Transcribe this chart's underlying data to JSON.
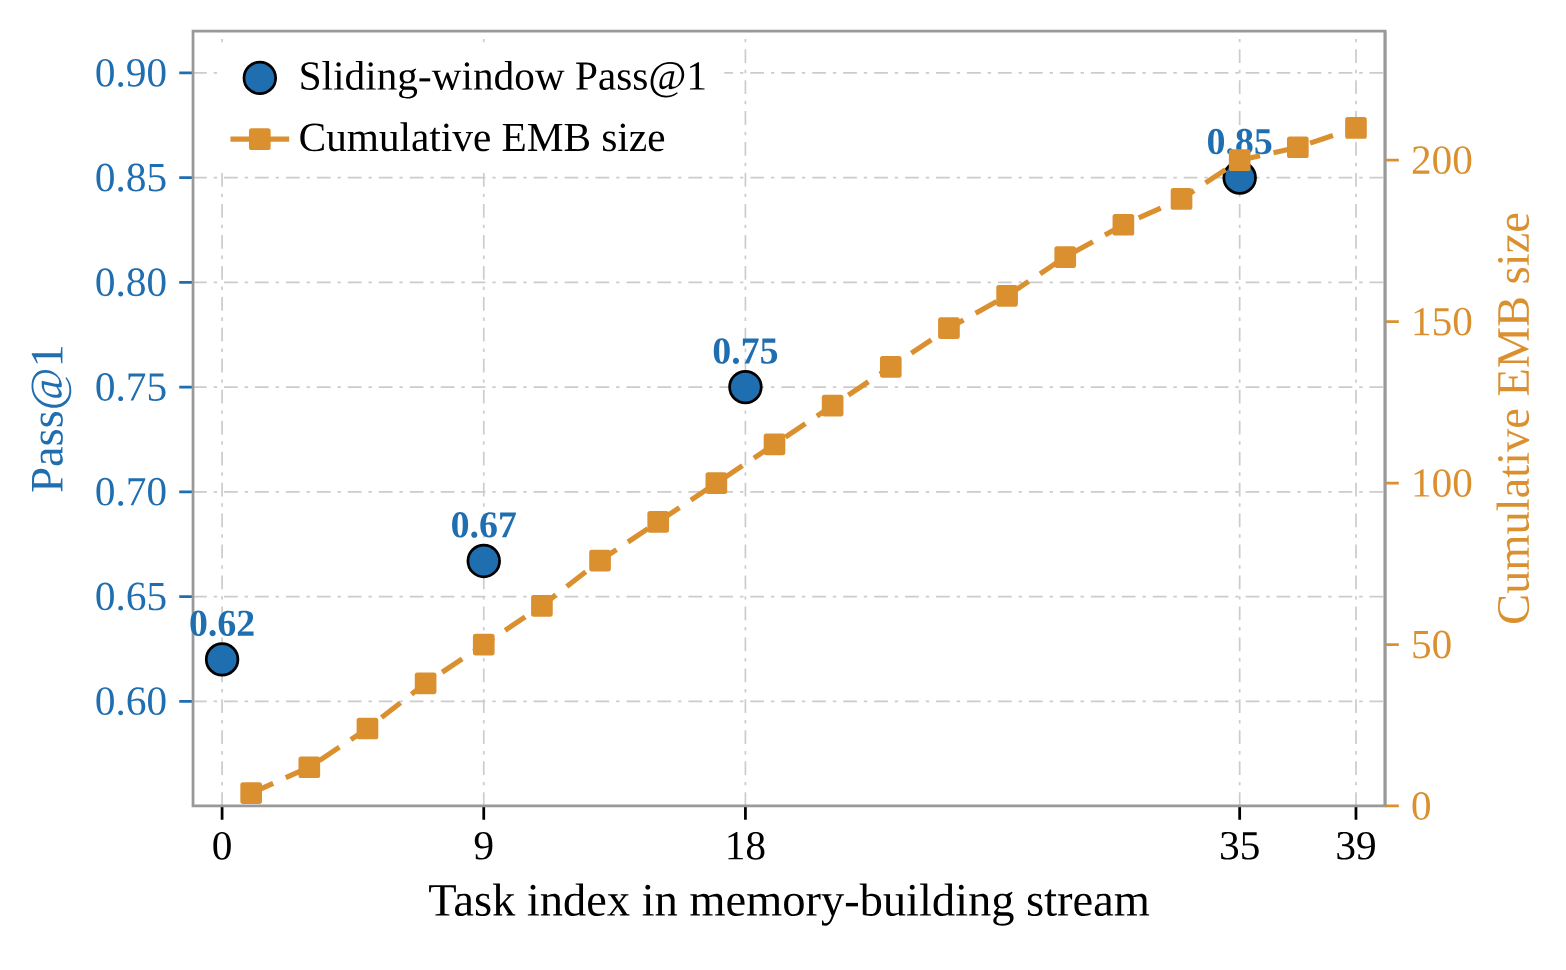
{
  "chart_data": {
    "type": "scatter",
    "xlabel": "Task index in memory-building stream",
    "ylabel": "Pass@1",
    "y2label": "Cumulative EMB size",
    "xlim": [
      -1,
      40
    ],
    "xticks": [
      0,
      9,
      18,
      35,
      39
    ],
    "ylim": [
      0.55,
      0.92
    ],
    "yticks": [
      {
        "value": 0.6,
        "label": "0.60"
      },
      0.65,
      {
        "value": 0.7,
        "label": "0.70"
      },
      0.75,
      {
        "value": 0.8,
        "label": "0.80"
      },
      0.85,
      {
        "value": 0.9,
        "label": "0.90"
      }
    ],
    "y2lim": [
      0,
      240
    ],
    "y2ticks": [
      0,
      50,
      100,
      150,
      200
    ],
    "grid": true,
    "legend": "top left",
    "series": [
      {
        "name": "Sliding-window Pass@1",
        "marker": "circle",
        "color": "#1f6eb0",
        "x": [
          0,
          9,
          18,
          35
        ],
        "values": [
          0.62,
          0.667,
          0.75,
          0.85
        ],
        "value_labels": [
          "0.62",
          "0.67",
          "0.75",
          "0.85"
        ]
      },
      {
        "name": "Cumulative EMB size",
        "type": "line",
        "axis": "y2",
        "marker": "square",
        "line_style": "dashed",
        "color": "#db9030",
        "x": [
          1,
          3,
          5,
          7,
          9,
          11,
          13,
          15,
          17,
          19,
          21,
          23,
          25,
          27,
          29,
          31,
          33,
          35,
          37,
          39
        ],
        "values": [
          4,
          12,
          24,
          38,
          50,
          62,
          76,
          88,
          100,
          112,
          124,
          136,
          148,
          158,
          170,
          180,
          188,
          200,
          204,
          210
        ]
      }
    ]
  }
}
